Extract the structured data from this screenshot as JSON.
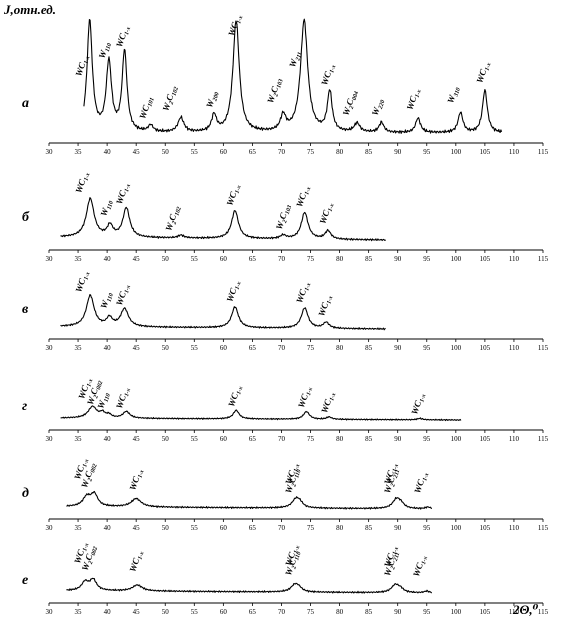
{
  "chart_data": {
    "type": "line",
    "ylabel": "J,отн.ед.",
    "xlabel": "2Θ,⁰",
    "xlim": [
      30,
      115
    ],
    "x_ticks": [
      30,
      35,
      40,
      45,
      50,
      55,
      60,
      65,
      70,
      75,
      80,
      85,
      90,
      95,
      100,
      105,
      110,
      115
    ],
    "panels": [
      {
        "letter": "а",
        "xrange": [
          36,
          108
        ],
        "peaks": [
          {
            "x": 37.0,
            "h": 1.0,
            "w": 0.55,
            "base": "WC",
            "sub": "1-x",
            "lx": 35.5,
            "lh": 0.5
          },
          {
            "x": 40.3,
            "h": 0.62,
            "w": 0.55,
            "base": "W",
            "sub": "110",
            "lx": 39.5,
            "lh": 0.66
          },
          {
            "x": 43.0,
            "h": 0.72,
            "w": 0.5,
            "base": "WC",
            "sub": "1-x",
            "lx": 42.5,
            "lh": 0.76
          },
          {
            "x": 47.5,
            "h": 0.06,
            "w": 0.5,
            "base": "WC",
            "sub": "101",
            "lx": 46.5,
            "lh": 0.12
          },
          {
            "x": 52.7,
            "h": 0.13,
            "w": 0.6,
            "base": "W",
            "sub": "2",
            "base2": "C",
            "sub2": "102",
            "lx": 50.5,
            "lh": 0.19
          },
          {
            "x": 58.4,
            "h": 0.15,
            "w": 0.5,
            "base": "W",
            "sub": "200",
            "lx": 58.0,
            "lh": 0.22
          },
          {
            "x": 62.2,
            "h": 1.0,
            "w": 0.65,
            "base": "WC",
            "sub": "1-x",
            "lx": 61.8,
            "lh": 0.86
          },
          {
            "x": 70.3,
            "h": 0.14,
            "w": 0.55,
            "base": "W",
            "sub": "2",
            "base2": "C",
            "sub2": "103",
            "lx": 68.5,
            "lh": 0.26
          },
          {
            "x": 73.9,
            "h": 1.0,
            "w": 0.75,
            "base": "W",
            "sub": "211",
            "lx": 72.3,
            "lh": 0.58
          },
          {
            "x": 78.3,
            "h": 0.36,
            "w": 0.5,
            "base": "WC",
            "sub": "1-x",
            "lx": 77.8,
            "lh": 0.42
          },
          {
            "x": 83.0,
            "h": 0.08,
            "w": 0.6,
            "base": "W",
            "sub": "2",
            "base2": "C",
            "sub2": "004",
            "lx": 81.5,
            "lh": 0.15
          },
          {
            "x": 87.2,
            "h": 0.09,
            "w": 0.5,
            "base": "W",
            "sub": "220",
            "lx": 86.5,
            "lh": 0.15
          },
          {
            "x": 93.5,
            "h": 0.13,
            "w": 0.5,
            "base": "WC",
            "sub": "1-x",
            "lx": 92.5,
            "lh": 0.2
          },
          {
            "x": 100.8,
            "h": 0.18,
            "w": 0.5,
            "base": "W",
            "sub": "310",
            "lx": 99.5,
            "lh": 0.26
          },
          {
            "x": 105.0,
            "h": 0.38,
            "w": 0.5,
            "base": "WC",
            "sub": "1-x",
            "lx": 104.5,
            "lh": 0.44
          }
        ]
      },
      {
        "letter": "б",
        "xrange": [
          32,
          88
        ],
        "peaks": [
          {
            "x": 37.1,
            "h": 0.55,
            "w": 0.8,
            "base": "WC",
            "sub": "1-x",
            "lx": 35.5,
            "lh": 0.66
          },
          {
            "x": 40.5,
            "h": 0.16,
            "w": 0.6,
            "base": "W",
            "sub": "110",
            "lx": 39.8,
            "lh": 0.33
          },
          {
            "x": 43.3,
            "h": 0.42,
            "w": 0.7,
            "base": "WC",
            "sub": "1-x",
            "lx": 42.5,
            "lh": 0.5
          },
          {
            "x": 52.7,
            "h": 0.04,
            "w": 0.6,
            "base": "W",
            "sub": "2",
            "base2": "C",
            "sub2": "102",
            "lx": 51.0,
            "lh": 0.12
          },
          {
            "x": 62.0,
            "h": 0.4,
            "w": 0.7,
            "base": "WC",
            "sub": "1-x",
            "lx": 61.5,
            "lh": 0.48
          },
          {
            "x": 70.3,
            "h": 0.05,
            "w": 0.6,
            "base": "W",
            "sub": "2",
            "base2": "C",
            "sub2": "103",
            "lx": 70.0,
            "lh": 0.14
          },
          {
            "x": 74.0,
            "h": 0.38,
            "w": 0.7,
            "base": "WC",
            "sub": "1-x",
            "lx": 73.5,
            "lh": 0.46
          },
          {
            "x": 78.0,
            "h": 0.12,
            "w": 0.6,
            "base": "WC",
            "sub": "1-x",
            "lx": 77.5,
            "lh": 0.22
          }
        ]
      },
      {
        "letter": "в",
        "xrange": [
          32,
          88
        ],
        "peaks": [
          {
            "x": 37.1,
            "h": 0.52,
            "w": 0.8,
            "base": "WC",
            "sub": "1-x",
            "lx": 35.5,
            "lh": 0.6
          },
          {
            "x": 40.4,
            "h": 0.14,
            "w": 0.6,
            "base": "W",
            "sub": "110",
            "lx": 39.8,
            "lh": 0.33
          },
          {
            "x": 43.0,
            "h": 0.3,
            "w": 0.8,
            "base": "WC",
            "sub": "1-x",
            "lx": 42.5,
            "lh": 0.38
          },
          {
            "x": 62.0,
            "h": 0.35,
            "w": 0.7,
            "base": "WC",
            "sub": "1-x",
            "lx": 61.5,
            "lh": 0.44
          },
          {
            "x": 74.0,
            "h": 0.34,
            "w": 0.7,
            "base": "WC",
            "sub": "1-x",
            "lx": 73.5,
            "lh": 0.42
          },
          {
            "x": 77.7,
            "h": 0.1,
            "w": 0.6,
            "base": "WC",
            "sub": "1-x",
            "lx": 77.3,
            "lh": 0.2
          }
        ]
      },
      {
        "letter": "г",
        "xrange": [
          32,
          101
        ],
        "peaks": [
          {
            "x": 37.5,
            "h": 0.24,
            "w": 0.9,
            "base": "WC",
            "sub": "1-x",
            "lx": 36.0,
            "lh": 0.42
          },
          {
            "x": 39.2,
            "h": 0.1,
            "w": 0.5,
            "base": "W",
            "sub": "2",
            "base2": "C",
            "sub2": "002",
            "lx": 37.5,
            "lh": 0.3
          },
          {
            "x": 40.3,
            "h": 0.07,
            "w": 0.5,
            "base": "W",
            "sub": "110",
            "lx": 39.3,
            "lh": 0.22
          },
          {
            "x": 43.3,
            "h": 0.14,
            "w": 0.7,
            "base": "WC",
            "sub": "1-x",
            "lx": 42.5,
            "lh": 0.22
          },
          {
            "x": 62.2,
            "h": 0.18,
            "w": 0.6,
            "base": "WC",
            "sub": "1-x",
            "lx": 61.8,
            "lh": 0.26
          },
          {
            "x": 74.3,
            "h": 0.16,
            "w": 0.6,
            "base": "WC",
            "sub": "1-x",
            "lx": 73.8,
            "lh": 0.24
          },
          {
            "x": 78.2,
            "h": 0.05,
            "w": 0.5,
            "base": "WC",
            "sub": "1-x",
            "lx": 77.8,
            "lh": 0.13
          },
          {
            "x": 93.8,
            "h": 0.03,
            "w": 0.5,
            "base": "WC",
            "sub": "1-x",
            "lx": 93.3,
            "lh": 0.1
          }
        ]
      },
      {
        "letter": "д",
        "xrange": [
          33,
          96
        ],
        "peaks": [
          {
            "x": 36.5,
            "h": 0.16,
            "w": 0.8,
            "base": "WC",
            "sub": "1-x",
            "lx": 35.3,
            "lh": 0.48
          },
          {
            "x": 37.8,
            "h": 0.2,
            "w": 0.7,
            "base": "W",
            "sub": "2",
            "base2": "C",
            "sub2": "002",
            "lx": 36.5,
            "lh": 0.34
          },
          {
            "x": 45.0,
            "h": 0.14,
            "w": 1.0,
            "base": "WC",
            "sub": "1-x",
            "lx": 44.8,
            "lh": 0.3
          },
          {
            "x": 72.5,
            "h": 0.15,
            "w": 0.8,
            "base": "WC",
            "sub": "1-x",
            "lx": 71.6,
            "lh": 0.4
          },
          {
            "x": 73.2,
            "h": 0.06,
            "w": 0.6,
            "base": "W",
            "sub": "2",
            "base2": "C",
            "sub2": "110",
            "lx": 71.6,
            "lh": 0.25
          },
          {
            "x": 89.8,
            "h": 0.16,
            "w": 0.8,
            "base": "WC",
            "sub": "1-x",
            "lx": 88.6,
            "lh": 0.4
          },
          {
            "x": 90.6,
            "h": 0.06,
            "w": 0.6,
            "base": "W",
            "sub": "2",
            "base2": "C",
            "sub2": "211",
            "lx": 88.6,
            "lh": 0.25
          },
          {
            "x": 95.2,
            "h": 0.03,
            "w": 0.5,
            "base": "WC",
            "sub": "1-x",
            "lx": 93.8,
            "lh": 0.25
          }
        ]
      },
      {
        "letter": "е",
        "xrange": [
          33,
          96
        ],
        "peaks": [
          {
            "x": 36.2,
            "h": 0.14,
            "w": 0.7,
            "base": "WC",
            "sub": "1-x",
            "lx": 35.3,
            "lh": 0.48
          },
          {
            "x": 37.6,
            "h": 0.18,
            "w": 0.7,
            "base": "W",
            "sub": "2",
            "base2": "C",
            "sub2": "002",
            "lx": 36.6,
            "lh": 0.36
          },
          {
            "x": 45.2,
            "h": 0.1,
            "w": 1.0,
            "base": "WC",
            "sub": "1-x",
            "lx": 44.8,
            "lh": 0.34
          },
          {
            "x": 72.3,
            "h": 0.12,
            "w": 0.8,
            "base": "WC",
            "sub": "1-x",
            "lx": 71.6,
            "lh": 0.44
          },
          {
            "x": 73.0,
            "h": 0.05,
            "w": 0.6,
            "base": "W",
            "sub": "2",
            "base2": "C",
            "sub2": "110",
            "lx": 71.6,
            "lh": 0.28
          },
          {
            "x": 89.6,
            "h": 0.13,
            "w": 0.8,
            "base": "WC",
            "sub": "1-x",
            "lx": 88.6,
            "lh": 0.42
          },
          {
            "x": 90.5,
            "h": 0.05,
            "w": 0.6,
            "base": "W",
            "sub": "2",
            "base2": "C",
            "sub2": "211",
            "lx": 88.6,
            "lh": 0.27
          },
          {
            "x": 95.0,
            "h": 0.03,
            "w": 0.5,
            "base": "WC",
            "sub": "1-x",
            "lx": 93.6,
            "lh": 0.26
          }
        ]
      }
    ]
  }
}
